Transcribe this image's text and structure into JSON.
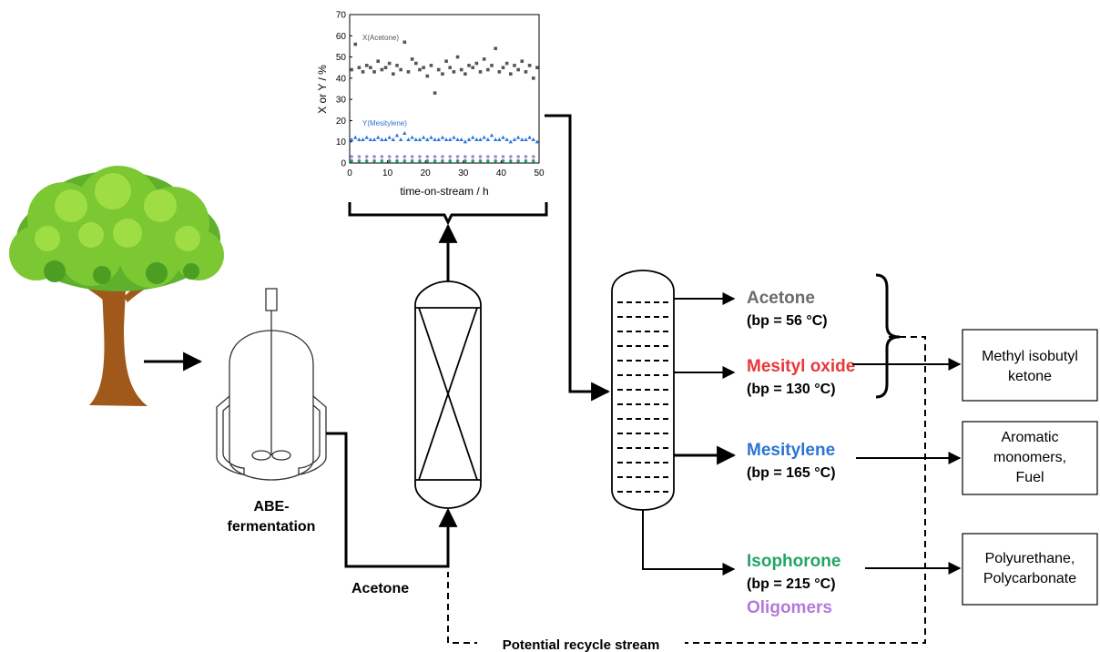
{
  "colors": {
    "acetone": "#6b6b6b",
    "mesityl_oxide": "#e8373a",
    "mesitylene": "#2c74d4",
    "isophorone": "#23a566",
    "oligomers": "#b57ad9",
    "black": "#000000",
    "tree_leaf_light": "#8fd43a",
    "tree_leaf_dark": "#4c9e22",
    "tree_trunk": "#a0591b"
  },
  "icons": {
    "tree": "tree-icon",
    "fermenter": "fermenter-icon",
    "reactor": "packed-bed-reactor-icon",
    "column": "distillation-column-icon"
  },
  "fermenter_label": [
    "ABE-",
    "fermentation"
  ],
  "feed_label": "Acetone",
  "recycle_label": "Potential recycle stream",
  "products": {
    "acetone": {
      "name": "Acetone",
      "bp": "(bp = 56 °C)"
    },
    "mesityl_oxide": {
      "name": "Mesityl oxide",
      "bp": "(bp = 130 °C)"
    },
    "mesitylene": {
      "name": "Mesitylene",
      "bp": "(bp = 165 °C)"
    },
    "isophorone": {
      "name": "Isophorone",
      "bp": "(bp = 215 °C)"
    },
    "oligomers": {
      "name": "Oligomers"
    }
  },
  "applications": {
    "mibk": [
      "Methyl isobutyl",
      "ketone"
    ],
    "aromatic": [
      "Aromatic",
      "monomers,",
      "Fuel"
    ],
    "poly": [
      "Polyurethane,",
      "Polycarbonate"
    ]
  },
  "chart_data": {
    "type": "scatter",
    "xlabel": "time-on-stream / h",
    "ylabel": "X or Y / %",
    "xlim": [
      0,
      50
    ],
    "ylim": [
      0,
      70
    ],
    "xticks": [
      0,
      10,
      20,
      30,
      40,
      50
    ],
    "yticks": [
      0,
      10,
      20,
      30,
      40,
      50,
      60,
      70
    ],
    "series": [
      {
        "name": "X(Acetone)",
        "marker": "square",
        "color": "#555555",
        "x": [
          0.5,
          1.5,
          2.5,
          3.5,
          4.5,
          5.5,
          6.5,
          7.5,
          8.5,
          9.5,
          10.5,
          11.5,
          12.5,
          13.5,
          14.5,
          15.5,
          16.5,
          17.5,
          18.5,
          19.5,
          20.5,
          21.5,
          22.5,
          23.5,
          24.5,
          25.5,
          26.5,
          27.5,
          28.5,
          29.5,
          30.5,
          31.5,
          32.5,
          33.5,
          34.5,
          35.5,
          36.5,
          37.5,
          38.5,
          39.5,
          40.5,
          41.5,
          42.5,
          43.5,
          44.5,
          45.5,
          46.5,
          47.5,
          48.5,
          49.5
        ],
        "y": [
          44,
          56,
          45,
          43,
          46,
          45,
          43,
          48,
          44,
          45,
          47,
          42,
          46,
          44,
          57,
          43,
          49,
          47,
          44,
          45,
          41,
          46,
          33,
          44,
          42,
          48,
          45,
          43,
          50,
          44,
          42,
          46,
          45,
          47,
          43,
          49,
          44,
          46,
          54,
          43,
          45,
          47,
          42,
          46,
          44,
          48,
          43,
          46,
          40,
          45
        ]
      },
      {
        "name": "Y(Mesitylene)",
        "marker": "triangle",
        "color": "#2c74d4",
        "x": [
          0.5,
          1.5,
          2.5,
          3.5,
          4.5,
          5.5,
          6.5,
          7.5,
          8.5,
          9.5,
          10.5,
          11.5,
          12.5,
          13.5,
          14.5,
          15.5,
          16.5,
          17.5,
          18.5,
          19.5,
          20.5,
          21.5,
          22.5,
          23.5,
          24.5,
          25.5,
          26.5,
          27.5,
          28.5,
          29.5,
          30.5,
          31.5,
          32.5,
          33.5,
          34.5,
          35.5,
          36.5,
          37.5,
          38.5,
          39.5,
          40.5,
          41.5,
          42.5,
          43.5,
          44.5,
          45.5,
          46.5,
          47.5,
          48.5,
          49.5
        ],
        "y": [
          11,
          12,
          11,
          11,
          12,
          11,
          11,
          12,
          11,
          11,
          12,
          11,
          13,
          11,
          14,
          11,
          12,
          11,
          11,
          12,
          11,
          12,
          11,
          11,
          12,
          11,
          11,
          12,
          11,
          11,
          10,
          11,
          12,
          11,
          11,
          12,
          11,
          13,
          11,
          11,
          12,
          11,
          10,
          11,
          12,
          11,
          11,
          12,
          11,
          10
        ]
      },
      {
        "name": "",
        "marker": "circle",
        "color": "#b57ad9",
        "x": [
          0.5,
          2.5,
          4.5,
          6.5,
          8.5,
          10.5,
          12.5,
          14.5,
          16.5,
          18.5,
          20.5,
          22.5,
          24.5,
          26.5,
          28.5,
          30.5,
          32.5,
          34.5,
          36.5,
          38.5,
          40.5,
          42.5,
          44.5,
          46.5,
          48.5
        ],
        "y": [
          3,
          3,
          3,
          3,
          3,
          3,
          3,
          3,
          3,
          3,
          3,
          3,
          3,
          3,
          3,
          3,
          3,
          3,
          3,
          3,
          3,
          3,
          3,
          3,
          3
        ]
      },
      {
        "name": "",
        "marker": "circle",
        "color": "#23a566",
        "x": [
          0.5,
          2.5,
          4.5,
          6.5,
          8.5,
          10.5,
          12.5,
          14.5,
          16.5,
          18.5,
          20.5,
          22.5,
          24.5,
          26.5,
          28.5,
          30.5,
          32.5,
          34.5,
          36.5,
          38.5,
          40.5,
          42.5,
          44.5,
          46.5,
          48.5
        ],
        "y": [
          1,
          1,
          1,
          1,
          1,
          1,
          1,
          1,
          1,
          1,
          1,
          1,
          1,
          1,
          1,
          1,
          1,
          1,
          1,
          1,
          1,
          1,
          1,
          1,
          1
        ]
      }
    ]
  }
}
